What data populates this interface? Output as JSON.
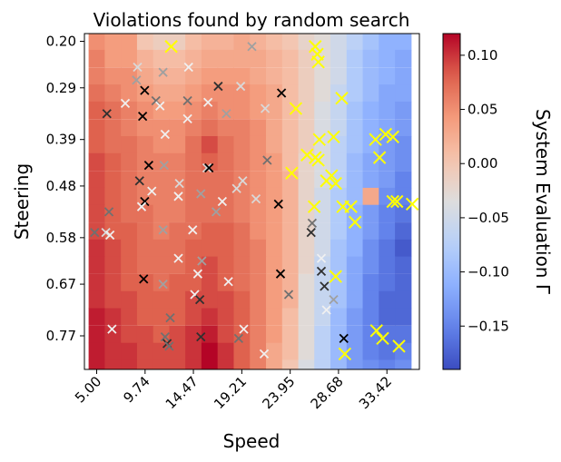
{
  "chart_data": {
    "type": "heatmap",
    "title": "Violations found by random search",
    "xlabel": "Speed",
    "ylabel": "Steering",
    "colorbar_label": "System Evaluation Γ",
    "colormap": "coolwarm",
    "vmin": -0.19,
    "vmax": 0.12,
    "xlim": [
      3.8,
      36.6
    ],
    "ylim": [
      0.185,
      0.835
    ],
    "x_ticks": [
      5.0,
      9.74,
      14.47,
      19.21,
      23.95,
      28.68,
      33.42
    ],
    "x_tick_labels": [
      "5.00",
      "9.74",
      "14.47",
      "19.21",
      "23.95",
      "28.68",
      "33.42"
    ],
    "y_ticks": [
      0.2,
      0.29,
      0.39,
      0.48,
      0.58,
      0.67,
      0.77
    ],
    "y_tick_labels": [
      "0.20",
      "0.29",
      "0.39",
      "0.48",
      "0.58",
      "0.67",
      "0.77"
    ],
    "colorbar_ticks": [
      0.1,
      0.05,
      0.0,
      -0.05,
      -0.1,
      -0.15
    ],
    "colorbar_tick_labels": [
      "0.10",
      "0.05",
      "0.00",
      "−0.05",
      "−0.10",
      "−0.15"
    ],
    "grid": {
      "x_centers": [
        5.0,
        6.58,
        8.16,
        9.74,
        11.32,
        12.9,
        14.47,
        16.05,
        17.63,
        19.21,
        20.79,
        22.37,
        23.95,
        25.53,
        27.1,
        28.68,
        30.26,
        31.84,
        33.42,
        35.0
      ],
      "y_centers": [
        0.2,
        0.233,
        0.267,
        0.3,
        0.333,
        0.367,
        0.4,
        0.433,
        0.467,
        0.5,
        0.533,
        0.567,
        0.6,
        0.633,
        0.667,
        0.7,
        0.733,
        0.767,
        0.8,
        0.833
      ],
      "values": [
        [
          0.05,
          0.04,
          0.04,
          0.0,
          -0.01,
          -0.01,
          0.01,
          0.02,
          0.02,
          0.03,
          0.02,
          0.01,
          0.0,
          -0.02,
          -0.03,
          -0.05,
          -0.07,
          -0.09,
          -0.11,
          -0.11
        ],
        [
          0.06,
          0.04,
          0.04,
          0.02,
          0.01,
          0.01,
          0.02,
          0.03,
          0.03,
          0.03,
          0.03,
          0.02,
          0.01,
          -0.01,
          -0.03,
          -0.05,
          -0.08,
          -0.1,
          -0.11,
          -0.12
        ],
        [
          0.06,
          0.05,
          0.05,
          0.03,
          0.02,
          0.02,
          0.03,
          0.04,
          0.04,
          0.04,
          0.03,
          0.02,
          0.01,
          -0.01,
          -0.03,
          -0.05,
          -0.08,
          -0.1,
          -0.11,
          -0.12
        ],
        [
          0.07,
          0.06,
          0.05,
          0.04,
          0.03,
          0.03,
          0.04,
          0.05,
          0.05,
          0.05,
          0.04,
          0.03,
          0.01,
          -0.01,
          -0.03,
          -0.06,
          -0.08,
          -0.1,
          -0.12,
          -0.12
        ],
        [
          0.08,
          0.07,
          0.06,
          0.05,
          0.04,
          0.04,
          0.05,
          0.06,
          0.05,
          0.05,
          0.04,
          0.03,
          0.01,
          -0.01,
          -0.04,
          -0.06,
          -0.09,
          -0.11,
          -0.12,
          -0.13
        ],
        [
          0.08,
          0.07,
          0.06,
          0.05,
          0.05,
          0.05,
          0.06,
          0.07,
          0.06,
          0.06,
          0.05,
          0.03,
          0.01,
          -0.01,
          -0.04,
          -0.06,
          -0.09,
          -0.11,
          -0.12,
          -0.13
        ],
        [
          0.08,
          0.07,
          0.07,
          0.06,
          0.05,
          0.05,
          0.07,
          0.09,
          0.07,
          0.06,
          0.05,
          0.03,
          0.01,
          -0.01,
          -0.04,
          -0.07,
          -0.09,
          -0.11,
          -0.13,
          -0.14
        ],
        [
          0.09,
          0.08,
          0.07,
          0.06,
          0.06,
          0.06,
          0.07,
          0.08,
          0.07,
          0.06,
          0.05,
          0.04,
          0.01,
          -0.02,
          -0.04,
          -0.07,
          -0.1,
          -0.12,
          -0.13,
          -0.14
        ],
        [
          0.09,
          0.08,
          0.07,
          0.06,
          0.06,
          0.06,
          0.07,
          0.07,
          0.07,
          0.06,
          0.05,
          0.04,
          0.02,
          -0.02,
          -0.04,
          -0.07,
          -0.1,
          -0.12,
          -0.13,
          -0.15
        ],
        [
          0.09,
          0.08,
          0.07,
          0.06,
          0.06,
          0.06,
          0.07,
          0.07,
          0.07,
          0.06,
          0.05,
          0.04,
          0.02,
          -0.02,
          -0.05,
          -0.08,
          -0.1,
          0.03,
          -0.14,
          -0.15
        ],
        [
          0.09,
          0.08,
          0.07,
          0.07,
          0.06,
          0.06,
          0.07,
          0.07,
          0.07,
          0.06,
          0.05,
          0.04,
          0.02,
          -0.02,
          -0.05,
          -0.08,
          -0.11,
          -0.13,
          -0.15,
          -0.16
        ],
        [
          0.09,
          0.08,
          0.08,
          0.07,
          0.06,
          0.07,
          0.07,
          0.08,
          0.08,
          0.07,
          0.05,
          0.04,
          0.02,
          -0.02,
          -0.05,
          -0.08,
          -0.11,
          -0.13,
          -0.15,
          -0.17
        ],
        [
          0.1,
          0.09,
          0.08,
          0.07,
          0.07,
          0.07,
          0.08,
          0.08,
          0.08,
          0.07,
          0.06,
          0.04,
          0.02,
          -0.02,
          -0.05,
          -0.09,
          -0.11,
          -0.14,
          -0.16,
          -0.18
        ],
        [
          0.1,
          0.09,
          0.08,
          0.07,
          0.07,
          0.07,
          0.08,
          0.09,
          0.08,
          0.07,
          0.06,
          0.04,
          0.02,
          -0.02,
          -0.06,
          -0.09,
          -0.12,
          -0.14,
          -0.16,
          -0.17
        ],
        [
          0.1,
          0.09,
          0.08,
          0.08,
          0.07,
          0.08,
          0.08,
          0.09,
          0.08,
          0.07,
          0.06,
          0.04,
          0.02,
          -0.03,
          -0.06,
          -0.09,
          -0.12,
          -0.15,
          -0.16,
          -0.17
        ],
        [
          0.1,
          0.09,
          0.09,
          0.08,
          0.08,
          0.08,
          0.09,
          0.09,
          0.09,
          0.08,
          0.06,
          0.04,
          0.02,
          -0.03,
          -0.06,
          -0.09,
          -0.12,
          -0.15,
          -0.17,
          -0.17
        ],
        [
          0.11,
          0.1,
          0.09,
          0.08,
          0.08,
          0.08,
          0.09,
          0.1,
          0.09,
          0.08,
          0.06,
          0.04,
          0.01,
          -0.03,
          -0.06,
          -0.1,
          -0.13,
          -0.15,
          -0.17,
          -0.17
        ],
        [
          0.11,
          0.1,
          0.09,
          0.09,
          0.08,
          0.09,
          0.1,
          0.11,
          0.09,
          0.08,
          0.06,
          0.04,
          0.01,
          -0.03,
          -0.07,
          -0.1,
          -0.13,
          -0.15,
          -0.16,
          -0.16
        ],
        [
          0.11,
          0.1,
          0.1,
          0.09,
          0.09,
          0.09,
          0.1,
          0.12,
          0.1,
          0.08,
          0.06,
          0.03,
          0.01,
          -0.03,
          -0.07,
          -0.1,
          -0.13,
          -0.15,
          -0.16,
          -0.15
        ],
        [
          0.11,
          0.1,
          0.1,
          0.09,
          0.09,
          0.09,
          0.1,
          0.12,
          0.1,
          0.08,
          0.06,
          0.03,
          0.0,
          -0.04,
          -0.07,
          -0.1,
          -0.13,
          -0.14,
          -0.15,
          -0.14
        ]
      ]
    },
    "series": [
      {
        "name": "",
        "marker": "x",
        "points": [
          {
            "x": 12.3,
            "y": 0.21,
            "color": "#ffff00"
          },
          {
            "x": 20.2,
            "y": 0.21,
            "color": "#a0a0a0"
          },
          {
            "x": 26.4,
            "y": 0.21,
            "color": "#ffff00"
          },
          {
            "x": 26.6,
            "y": 0.225,
            "color": "#ffff00"
          },
          {
            "x": 26.7,
            "y": 0.24,
            "color": "#ffff00"
          },
          {
            "x": 9.0,
            "y": 0.25,
            "color": "#d9d9d9"
          },
          {
            "x": 11.5,
            "y": 0.26,
            "color": "#a0a0a0"
          },
          {
            "x": 14.0,
            "y": 0.25,
            "color": "#f0f0f0"
          },
          {
            "x": 8.9,
            "y": 0.275,
            "color": "#a0a0a0"
          },
          {
            "x": 16.9,
            "y": 0.287,
            "color": "#303030"
          },
          {
            "x": 19.1,
            "y": 0.287,
            "color": "#d9d9d9"
          },
          {
            "x": 9.7,
            "y": 0.295,
            "color": "#000000"
          },
          {
            "x": 23.1,
            "y": 0.3,
            "color": "#000000"
          },
          {
            "x": 13.9,
            "y": 0.315,
            "color": "#707070"
          },
          {
            "x": 10.8,
            "y": 0.315,
            "color": "#707070"
          },
          {
            "x": 15.9,
            "y": 0.318,
            "color": "#f0f0f0"
          },
          {
            "x": 29.0,
            "y": 0.31,
            "color": "#ffff00"
          },
          {
            "x": 7.8,
            "y": 0.32,
            "color": "#f0f0f0"
          },
          {
            "x": 11.2,
            "y": 0.325,
            "color": "#f0f0f0"
          },
          {
            "x": 24.5,
            "y": 0.33,
            "color": "#ffff00"
          },
          {
            "x": 6.0,
            "y": 0.34,
            "color": "#303030"
          },
          {
            "x": 9.5,
            "y": 0.345,
            "color": "#000000"
          },
          {
            "x": 17.7,
            "y": 0.34,
            "color": "#a0a0a0"
          },
          {
            "x": 13.9,
            "y": 0.35,
            "color": "#f0f0f0"
          },
          {
            "x": 21.5,
            "y": 0.33,
            "color": "#d9d9d9"
          },
          {
            "x": 11.7,
            "y": 0.38,
            "color": "#f0f0f0"
          },
          {
            "x": 28.2,
            "y": 0.385,
            "color": "#ffff00"
          },
          {
            "x": 26.8,
            "y": 0.39,
            "color": "#ffff00"
          },
          {
            "x": 32.3,
            "y": 0.39,
            "color": "#ffff00"
          },
          {
            "x": 32.7,
            "y": 0.425,
            "color": "#ffff00"
          },
          {
            "x": 33.3,
            "y": 0.38,
            "color": "#ffff00"
          },
          {
            "x": 34.0,
            "y": 0.385,
            "color": "#ffff00"
          },
          {
            "x": 25.6,
            "y": 0.42,
            "color": "#ffff00"
          },
          {
            "x": 26.4,
            "y": 0.425,
            "color": "#ffff00"
          },
          {
            "x": 26.7,
            "y": 0.43,
            "color": "#ffff00"
          },
          {
            "x": 21.7,
            "y": 0.43,
            "color": "#707070"
          },
          {
            "x": 10.1,
            "y": 0.44,
            "color": "#000000"
          },
          {
            "x": 11.6,
            "y": 0.44,
            "color": "#a0a0a0"
          },
          {
            "x": 15.8,
            "y": 0.445,
            "color": "#d9d9d9"
          },
          {
            "x": 16.0,
            "y": 0.445,
            "color": "#000000"
          },
          {
            "x": 9.2,
            "y": 0.47,
            "color": "#303030"
          },
          {
            "x": 13.1,
            "y": 0.475,
            "color": "#d9d9d9"
          },
          {
            "x": 27.5,
            "y": 0.47,
            "color": "#ffff00"
          },
          {
            "x": 28.0,
            "y": 0.46,
            "color": "#ffff00"
          },
          {
            "x": 24.1,
            "y": 0.455,
            "color": "#ffff00"
          },
          {
            "x": 28.4,
            "y": 0.475,
            "color": "#ffff00"
          },
          {
            "x": 19.3,
            "y": 0.47,
            "color": "#d9d9d9"
          },
          {
            "x": 18.7,
            "y": 0.485,
            "color": "#d9d9d9"
          },
          {
            "x": 10.4,
            "y": 0.49,
            "color": "#f0f0f0"
          },
          {
            "x": 15.2,
            "y": 0.495,
            "color": "#a0a0a0"
          },
          {
            "x": 13.0,
            "y": 0.5,
            "color": "#f0f0f0"
          },
          {
            "x": 9.7,
            "y": 0.51,
            "color": "#000000"
          },
          {
            "x": 17.3,
            "y": 0.51,
            "color": "#f0f0f0"
          },
          {
            "x": 20.6,
            "y": 0.505,
            "color": "#d9d9d9"
          },
          {
            "x": 22.8,
            "y": 0.515,
            "color": "#000000"
          },
          {
            "x": 34.0,
            "y": 0.51,
            "color": "#ffff00"
          },
          {
            "x": 34.4,
            "y": 0.51,
            "color": "#ffff00"
          },
          {
            "x": 35.9,
            "y": 0.515,
            "color": "#ffff00"
          },
          {
            "x": 26.3,
            "y": 0.52,
            "color": "#ffff00"
          },
          {
            "x": 29.1,
            "y": 0.52,
            "color": "#ffff00"
          },
          {
            "x": 29.9,
            "y": 0.52,
            "color": "#ffff00"
          },
          {
            "x": 9.4,
            "y": 0.52,
            "color": "#f0f0f0"
          },
          {
            "x": 6.2,
            "y": 0.53,
            "color": "#707070"
          },
          {
            "x": 16.7,
            "y": 0.53,
            "color": "#a0a0a0"
          },
          {
            "x": 30.3,
            "y": 0.55,
            "color": "#ffff00"
          },
          {
            "x": 26.1,
            "y": 0.552,
            "color": "#707070"
          },
          {
            "x": 11.5,
            "y": 0.565,
            "color": "#a0a0a0"
          },
          {
            "x": 14.4,
            "y": 0.565,
            "color": "#f0f0f0"
          },
          {
            "x": 4.8,
            "y": 0.57,
            "color": "#707070"
          },
          {
            "x": 5.9,
            "y": 0.57,
            "color": "#d9d9d9"
          },
          {
            "x": 6.3,
            "y": 0.575,
            "color": "#f0f0f0"
          },
          {
            "x": 26.0,
            "y": 0.57,
            "color": "#303030"
          },
          {
            "x": 27.0,
            "y": 0.62,
            "color": "#f0f0f0"
          },
          {
            "x": 13.0,
            "y": 0.62,
            "color": "#f0f0f0"
          },
          {
            "x": 15.3,
            "y": 0.625,
            "color": "#a0a0a0"
          },
          {
            "x": 23.0,
            "y": 0.65,
            "color": "#000000"
          },
          {
            "x": 27.0,
            "y": 0.645,
            "color": "#303030"
          },
          {
            "x": 14.9,
            "y": 0.65,
            "color": "#f0f0f0"
          },
          {
            "x": 28.4,
            "y": 0.655,
            "color": "#ffff00"
          },
          {
            "x": 9.6,
            "y": 0.66,
            "color": "#000000"
          },
          {
            "x": 17.9,
            "y": 0.665,
            "color": "#f0f0f0"
          },
          {
            "x": 11.5,
            "y": 0.67,
            "color": "#a0a0a0"
          },
          {
            "x": 27.3,
            "y": 0.674,
            "color": "#303030"
          },
          {
            "x": 14.6,
            "y": 0.69,
            "color": "#f0f0f0"
          },
          {
            "x": 23.8,
            "y": 0.69,
            "color": "#707070"
          },
          {
            "x": 15.1,
            "y": 0.7,
            "color": "#303030"
          },
          {
            "x": 28.2,
            "y": 0.7,
            "color": "#a0a0a0"
          },
          {
            "x": 27.5,
            "y": 0.72,
            "color": "#f0f0f0"
          },
          {
            "x": 12.2,
            "y": 0.735,
            "color": "#707070"
          },
          {
            "x": 6.5,
            "y": 0.757,
            "color": "#f0f0f0"
          },
          {
            "x": 19.4,
            "y": 0.757,
            "color": "#f0f0f0"
          },
          {
            "x": 32.4,
            "y": 0.76,
            "color": "#ffff00"
          },
          {
            "x": 11.7,
            "y": 0.772,
            "color": "#707070"
          },
          {
            "x": 15.2,
            "y": 0.772,
            "color": "#303030"
          },
          {
            "x": 18.9,
            "y": 0.775,
            "color": "#707070"
          },
          {
            "x": 11.9,
            "y": 0.785,
            "color": "#303030"
          },
          {
            "x": 29.2,
            "y": 0.775,
            "color": "#000000"
          },
          {
            "x": 33.0,
            "y": 0.775,
            "color": "#ffff00"
          },
          {
            "x": 34.6,
            "y": 0.79,
            "color": "#ffff00"
          },
          {
            "x": 12.1,
            "y": 0.79,
            "color": "#707070"
          },
          {
            "x": 21.4,
            "y": 0.805,
            "color": "#f0f0f0"
          },
          {
            "x": 29.3,
            "y": 0.805,
            "color": "#ffff00"
          }
        ]
      }
    ]
  }
}
